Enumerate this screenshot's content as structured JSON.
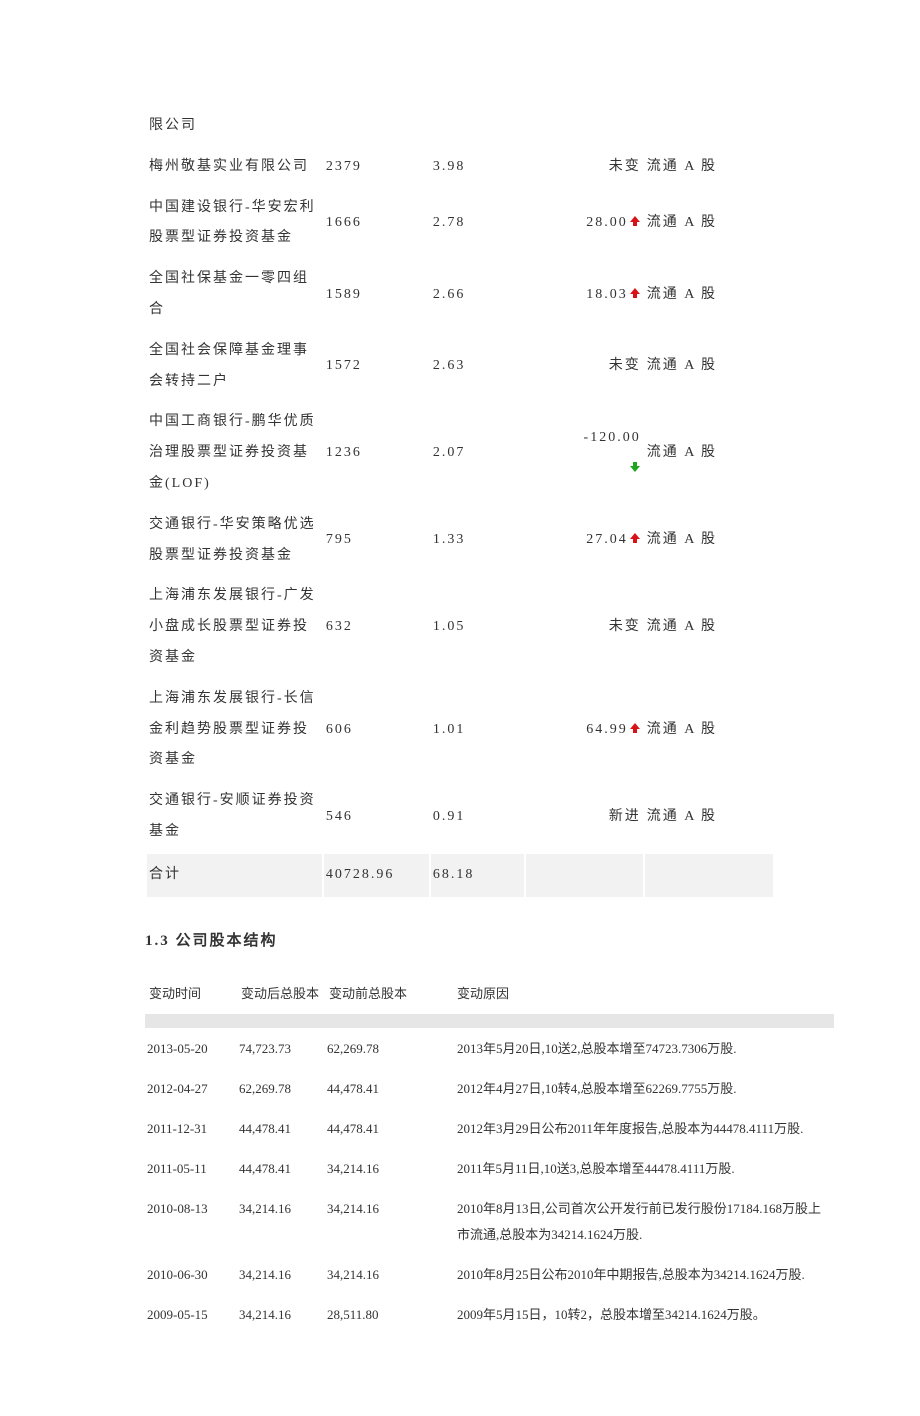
{
  "colors": {
    "up": "#d71318",
    "down": "#1fa61f",
    "divider": "#e6e6e6",
    "total_bg": "#f2f2f2"
  },
  "shareholders": {
    "fragment_name": "限公司",
    "rows": [
      {
        "name": "梅州敬基实业有限公司",
        "shares": "2379",
        "pct": "3.98",
        "change": "未变",
        "dir": "none",
        "type": "流通 A 股"
      },
      {
        "name": "中国建设银行-华安宏利股票型证券投资基金",
        "shares": "1666",
        "pct": "2.78",
        "change": "28.00",
        "dir": "up",
        "type": "流通 A 股"
      },
      {
        "name": "全国社保基金一零四组合",
        "shares": "1589",
        "pct": "2.66",
        "change": "18.03",
        "dir": "up",
        "type": "流通 A 股"
      },
      {
        "name": "全国社会保障基金理事会转持二户",
        "shares": "1572",
        "pct": "2.63",
        "change": "未变",
        "dir": "none",
        "type": "流通 A 股"
      },
      {
        "name": "中国工商银行-鹏华优质治理股票型证券投资基金(LOF)",
        "shares": "1236",
        "pct": "2.07",
        "change": "-120.00",
        "dir": "down",
        "type": "流通 A 股"
      },
      {
        "name": "交通银行-华安策略优选股票型证券投资基金",
        "shares": "795",
        "pct": "1.33",
        "change": "27.04",
        "dir": "up",
        "type": "流通 A 股"
      },
      {
        "name": "上海浦东发展银行-广发小盘成长股票型证券投资基金",
        "shares": "632",
        "pct": "1.05",
        "change": "未变",
        "dir": "none",
        "type": "流通 A 股"
      },
      {
        "name": "上海浦东发展银行-长信金利趋势股票型证券投资基金",
        "shares": "606",
        "pct": "1.01",
        "change": "64.99",
        "dir": "up",
        "type": "流通 A 股"
      },
      {
        "name": "交通银行-安顺证券投资基金",
        "shares": "546",
        "pct": "0.91",
        "change": "新进",
        "dir": "none",
        "type": "流通 A 股"
      }
    ],
    "total": {
      "label": "合计",
      "shares": "40728.96",
      "pct": "68.18"
    }
  },
  "section_heading": "1.3 公司股本结构",
  "capital": {
    "headers": {
      "date": "变动时间",
      "after": "变动后总股本",
      "before": "变动前总股本",
      "reason": "变动原因"
    },
    "rows": [
      {
        "date": "2013-05-20",
        "after": "74,723.73",
        "before": "62,269.78",
        "reason": "2013年5月20日,10送2,总股本增至74723.7306万股."
      },
      {
        "date": "2012-04-27",
        "after": "62,269.78",
        "before": "44,478.41",
        "reason": "2012年4月27日,10转4,总股本增至62269.7755万股."
      },
      {
        "date": "2011-12-31",
        "after": "44,478.41",
        "before": "44,478.41",
        "reason": "2012年3月29日公布2011年年度报告,总股本为44478.4111万股."
      },
      {
        "date": "2011-05-11",
        "after": "44,478.41",
        "before": "34,214.16",
        "reason": "2011年5月11日,10送3,总股本增至44478.4111万股."
      },
      {
        "date": "2010-08-13",
        "after": "34,214.16",
        "before": "34,214.16",
        "reason": "2010年8月13日,公司首次公开发行前已发行股份17184.168万股上市流通,总股本为34214.1624万股."
      },
      {
        "date": "2010-06-30",
        "after": "34,214.16",
        "before": "34,214.16",
        "reason": "2010年8月25日公布2010年中期报告,总股本为34214.1624万股."
      },
      {
        "date": "2009-05-15",
        "after": "34,214.16",
        "before": "28,511.80",
        "reason": "2009年5月15日，10转2，总股本增至34214.1624万股。"
      }
    ]
  }
}
